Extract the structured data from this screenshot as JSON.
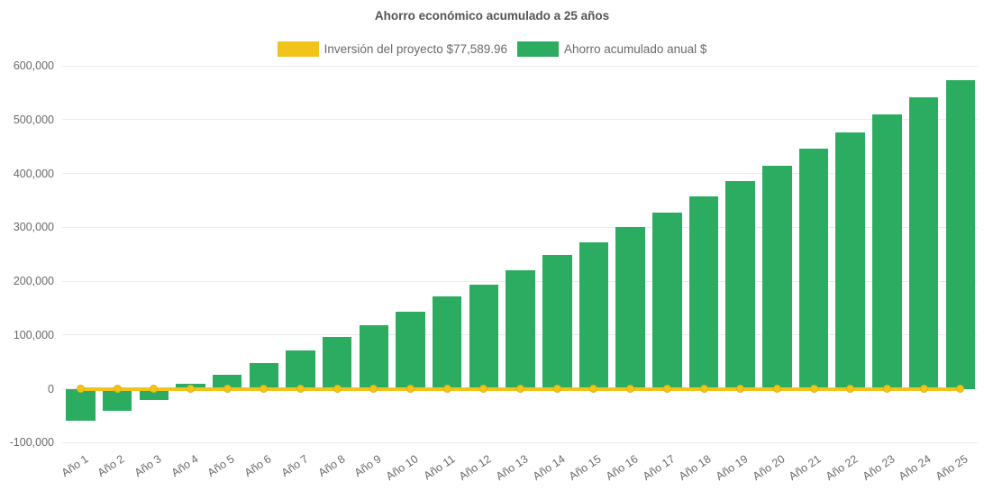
{
  "chart_data": {
    "type": "bar",
    "title": "Ahorro económico acumulado a 25 años",
    "legend_position": "top",
    "grid": "faint horizontal gridlines",
    "colors": {
      "investment_yellow": "#F0C41B",
      "marker_border": "#DFB30E",
      "savings_green": "#2BAC60",
      "title_text": "#545454",
      "axis_text": "#6A6A6A"
    },
    "categories": [
      "Año 1",
      "Año 2",
      "Año 3",
      "Año 4",
      "Año 5",
      "Año 6",
      "Año 7",
      "Año 8",
      "Año 9",
      "Año 10",
      "Año 11",
      "Año 12",
      "Año 13",
      "Año 14",
      "Año 15",
      "Año 16",
      "Año 17",
      "Año 18",
      "Año 19",
      "Año 20",
      "Año 21",
      "Año 22",
      "Año 23",
      "Año 24",
      "Año 25"
    ],
    "series": [
      {
        "name": "Inversión del proyecto $77,589.96",
        "type": "line",
        "color": "#F0C41B",
        "note": "flat line with round markers drawn along the zero baseline",
        "values": [
          0,
          0,
          0,
          0,
          0,
          0,
          0,
          0,
          0,
          0,
          0,
          0,
          0,
          0,
          0,
          0,
          0,
          0,
          0,
          0,
          0,
          0,
          0,
          0,
          0
        ]
      },
      {
        "name": "Ahorro acumulado anual $",
        "type": "bar",
        "color": "#2BAC60",
        "values": [
          -60000,
          -41000,
          -20500,
          9000,
          26500,
          48500,
          71500,
          96000,
          118500,
          143000,
          171000,
          193500,
          220000,
          248000,
          273000,
          301000,
          328000,
          357500,
          386000,
          415000,
          445500,
          477000,
          510000,
          541500,
          573000
        ]
      }
    ],
    "ylim": [
      -100000,
      600000
    ],
    "ytick_step": 100000,
    "yticks": [
      {
        "value": 600000,
        "label": "600,000"
      },
      {
        "value": 500000,
        "label": "500,000"
      },
      {
        "value": 400000,
        "label": "400,000"
      },
      {
        "value": 300000,
        "label": "300,000"
      },
      {
        "value": 200000,
        "label": "200,000"
      },
      {
        "value": 100000,
        "label": "100,000"
      },
      {
        "value": 0,
        "label": "0"
      },
      {
        "value": -100000,
        "label": "-100,000"
      }
    ]
  }
}
